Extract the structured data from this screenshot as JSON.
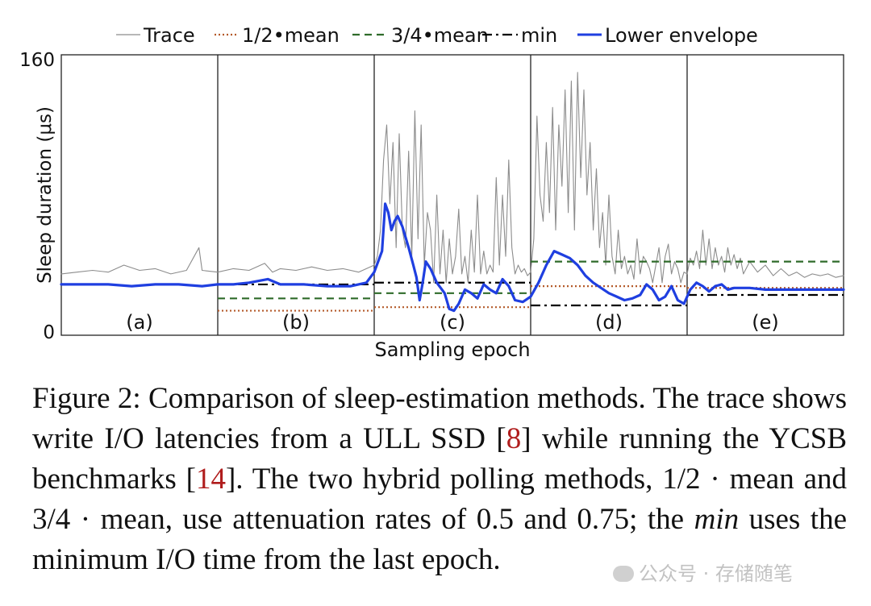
{
  "chart_data": {
    "type": "line",
    "title": "",
    "xlabel": "Sampling epoch",
    "ylabel": "Sleep duration (μs)",
    "ylim": [
      0,
      160
    ],
    "yticks": [
      0,
      160
    ],
    "grid": false,
    "legend_position": "top",
    "xlim": [
      0,
      500
    ],
    "legend": [
      "Trace",
      "1/2•mean",
      "3/4•mean",
      "min",
      "Lower envelope"
    ],
    "epochs": [
      {
        "label": "(a)",
        "x_range": [
          0,
          100
        ]
      },
      {
        "label": "(b)",
        "x_range": [
          100,
          200
        ]
      },
      {
        "label": "(c)",
        "x_range": [
          200,
          300
        ]
      },
      {
        "label": "(d)",
        "x_range": [
          300,
          400
        ]
      },
      {
        "label": "(e)",
        "x_range": [
          400,
          500
        ]
      }
    ],
    "series": [
      {
        "name": "Trace",
        "color": "#8c8c8c",
        "style": "solid",
        "points": [
          [
            0,
            35
          ],
          [
            10,
            36
          ],
          [
            20,
            37
          ],
          [
            30,
            36
          ],
          [
            40,
            40
          ],
          [
            50,
            37
          ],
          [
            60,
            38
          ],
          [
            70,
            35
          ],
          [
            80,
            37
          ],
          [
            88,
            50
          ],
          [
            90,
            37
          ],
          [
            100,
            36
          ],
          [
            110,
            38
          ],
          [
            120,
            37
          ],
          [
            130,
            41
          ],
          [
            135,
            36
          ],
          [
            140,
            38
          ],
          [
            150,
            37
          ],
          [
            160,
            39
          ],
          [
            170,
            37
          ],
          [
            180,
            38
          ],
          [
            190,
            36
          ],
          [
            200,
            40
          ],
          [
            202,
            45
          ],
          [
            204,
            60
          ],
          [
            206,
            100
          ],
          [
            208,
            120
          ],
          [
            210,
            75
          ],
          [
            212,
            110
          ],
          [
            214,
            50
          ],
          [
            216,
            115
          ],
          [
            218,
            60
          ],
          [
            220,
            50
          ],
          [
            222,
            105
          ],
          [
            224,
            45
          ],
          [
            226,
            128
          ],
          [
            228,
            55
          ],
          [
            230,
            120
          ],
          [
            232,
            40
          ],
          [
            234,
            70
          ],
          [
            236,
            60
          ],
          [
            238,
            30
          ],
          [
            240,
            80
          ],
          [
            242,
            35
          ],
          [
            244,
            60
          ],
          [
            246,
            30
          ],
          [
            248,
            55
          ],
          [
            250,
            35
          ],
          [
            252,
            45
          ],
          [
            254,
            72
          ],
          [
            256,
            35
          ],
          [
            258,
            45
          ],
          [
            260,
            30
          ],
          [
            262,
            60
          ],
          [
            264,
            36
          ],
          [
            266,
            80
          ],
          [
            268,
            35
          ],
          [
            270,
            48
          ],
          [
            272,
            35
          ],
          [
            274,
            40
          ],
          [
            276,
            36
          ],
          [
            278,
            90
          ],
          [
            280,
            40
          ],
          [
            282,
            80
          ],
          [
            284,
            45
          ],
          [
            286,
            100
          ],
          [
            288,
            50
          ],
          [
            290,
            35
          ],
          [
            292,
            40
          ],
          [
            294,
            36
          ],
          [
            296,
            38
          ],
          [
            298,
            34
          ],
          [
            300,
            36
          ],
          [
            302,
            55
          ],
          [
            304,
            125
          ],
          [
            306,
            80
          ],
          [
            308,
            65
          ],
          [
            310,
            110
          ],
          [
            312,
            70
          ],
          [
            314,
            130
          ],
          [
            316,
            60
          ],
          [
            318,
            120
          ],
          [
            320,
            85
          ],
          [
            322,
            140
          ],
          [
            324,
            70
          ],
          [
            326,
            145
          ],
          [
            328,
            60
          ],
          [
            330,
            150
          ],
          [
            332,
            90
          ],
          [
            334,
            140
          ],
          [
            336,
            80
          ],
          [
            338,
            110
          ],
          [
            340,
            60
          ],
          [
            342,
            95
          ],
          [
            344,
            50
          ],
          [
            346,
            70
          ],
          [
            348,
            40
          ],
          [
            350,
            80
          ],
          [
            352,
            45
          ],
          [
            354,
            35
          ],
          [
            356,
            60
          ],
          [
            358,
            38
          ],
          [
            360,
            45
          ],
          [
            362,
            35
          ],
          [
            364,
            40
          ],
          [
            366,
            32
          ],
          [
            368,
            55
          ],
          [
            370,
            35
          ],
          [
            372,
            45
          ],
          [
            374,
            42
          ],
          [
            376,
            38
          ],
          [
            378,
            30
          ],
          [
            380,
            40
          ],
          [
            382,
            50
          ],
          [
            384,
            30
          ],
          [
            386,
            45
          ],
          [
            388,
            52
          ],
          [
            390,
            35
          ],
          [
            392,
            42
          ],
          [
            394,
            38
          ],
          [
            396,
            30
          ],
          [
            398,
            36
          ],
          [
            400,
            35
          ],
          [
            402,
            44
          ],
          [
            404,
            40
          ],
          [
            406,
            48
          ],
          [
            408,
            38
          ],
          [
            410,
            60
          ],
          [
            412,
            40
          ],
          [
            414,
            55
          ],
          [
            416,
            38
          ],
          [
            418,
            50
          ],
          [
            420,
            40
          ],
          [
            422,
            45
          ],
          [
            424,
            36
          ],
          [
            426,
            50
          ],
          [
            428,
            40
          ],
          [
            430,
            46
          ],
          [
            432,
            38
          ],
          [
            434,
            44
          ],
          [
            436,
            35
          ],
          [
            440,
            42
          ],
          [
            445,
            36
          ],
          [
            450,
            40
          ],
          [
            455,
            34
          ],
          [
            460,
            38
          ],
          [
            465,
            34
          ],
          [
            470,
            36
          ],
          [
            475,
            33
          ],
          [
            480,
            35
          ],
          [
            485,
            34
          ],
          [
            490,
            35
          ],
          [
            495,
            33
          ],
          [
            500,
            34
          ]
        ]
      },
      {
        "name": "1/2•mean",
        "color": "#b45a2a",
        "style": "dotted",
        "segments": [
          {
            "x": [
              100,
              200
            ],
            "y": 14
          },
          {
            "x": [
              200,
              300
            ],
            "y": 16
          },
          {
            "x": [
              300,
              400
            ],
            "y": 28
          },
          {
            "x": [
              400,
              500
            ],
            "y": 27
          }
        ]
      },
      {
        "name": "3/4•mean",
        "color": "#2f6b2a",
        "style": "dashed",
        "segments": [
          {
            "x": [
              100,
              200
            ],
            "y": 21
          },
          {
            "x": [
              200,
              300
            ],
            "y": 24
          },
          {
            "x": [
              300,
              400
            ],
            "y": 42
          },
          {
            "x": [
              400,
              500
            ],
            "y": 42
          }
        ]
      },
      {
        "name": "min",
        "color": "#000000",
        "style": "dashdot",
        "segments": [
          {
            "x": [
              100,
              200
            ],
            "y": 29
          },
          {
            "x": [
              200,
              300
            ],
            "y": 30
          },
          {
            "x": [
              300,
              400
            ],
            "y": 17
          },
          {
            "x": [
              400,
              500
            ],
            "y": 23
          }
        ]
      },
      {
        "name": "Lower envelope",
        "color": "#1f3fe0",
        "style": "solid",
        "points": [
          [
            0,
            29
          ],
          [
            15,
            29
          ],
          [
            30,
            29
          ],
          [
            45,
            28
          ],
          [
            60,
            29
          ],
          [
            75,
            29
          ],
          [
            90,
            28
          ],
          [
            100,
            29
          ],
          [
            110,
            29
          ],
          [
            120,
            30
          ],
          [
            132,
            32
          ],
          [
            140,
            29
          ],
          [
            155,
            29
          ],
          [
            170,
            28
          ],
          [
            185,
            28
          ],
          [
            195,
            30
          ],
          [
            200,
            36
          ],
          [
            205,
            48
          ],
          [
            207,
            75
          ],
          [
            209,
            70
          ],
          [
            211,
            60
          ],
          [
            213,
            65
          ],
          [
            215,
            68
          ],
          [
            218,
            62
          ],
          [
            222,
            50
          ],
          [
            225,
            40
          ],
          [
            227,
            33
          ],
          [
            229,
            20
          ],
          [
            231,
            30
          ],
          [
            233,
            42
          ],
          [
            236,
            38
          ],
          [
            240,
            30
          ],
          [
            245,
            24
          ],
          [
            248,
            15
          ],
          [
            251,
            14
          ],
          [
            254,
            18
          ],
          [
            258,
            26
          ],
          [
            262,
            24
          ],
          [
            266,
            21
          ],
          [
            270,
            29
          ],
          [
            274,
            26
          ],
          [
            278,
            24
          ],
          [
            282,
            32
          ],
          [
            286,
            28
          ],
          [
            290,
            20
          ],
          [
            295,
            19
          ],
          [
            300,
            22
          ],
          [
            305,
            30
          ],
          [
            310,
            40
          ],
          [
            315,
            48
          ],
          [
            320,
            46
          ],
          [
            325,
            44
          ],
          [
            330,
            40
          ],
          [
            335,
            34
          ],
          [
            340,
            30
          ],
          [
            345,
            27
          ],
          [
            350,
            24
          ],
          [
            355,
            22
          ],
          [
            360,
            20
          ],
          [
            365,
            21
          ],
          [
            370,
            23
          ],
          [
            374,
            29
          ],
          [
            378,
            26
          ],
          [
            382,
            20
          ],
          [
            386,
            22
          ],
          [
            390,
            28
          ],
          [
            394,
            20
          ],
          [
            398,
            18
          ],
          [
            402,
            26
          ],
          [
            406,
            30
          ],
          [
            410,
            28
          ],
          [
            414,
            25
          ],
          [
            418,
            28
          ],
          [
            422,
            29
          ],
          [
            426,
            26
          ],
          [
            430,
            27
          ],
          [
            434,
            27
          ],
          [
            440,
            27
          ],
          [
            450,
            26
          ],
          [
            460,
            26
          ],
          [
            470,
            26
          ],
          [
            480,
            26
          ],
          [
            490,
            26
          ],
          [
            500,
            26
          ]
        ]
      }
    ]
  },
  "caption": {
    "line1": "Figure 2: Comparison of sleep-estimation methods. The trace",
    "line2_a": "shows write I/O latencies from a ULL SSD [",
    "ref1": "8",
    "line2_b": "] while running",
    "line3_a": "the YCSB benchmarks [",
    "ref2": "14",
    "line3_b": "]. The two hybrid polling methods,",
    "line4": "1/2 · mean and 3/4 · mean, use attenuation rates of 0.5 and",
    "line5_a": "0.75; the ",
    "line5_em": "min",
    "line5_b": " uses the minimum I/O time from the last epoch."
  },
  "watermark": {
    "text": "公众号 · 存储随笔"
  }
}
